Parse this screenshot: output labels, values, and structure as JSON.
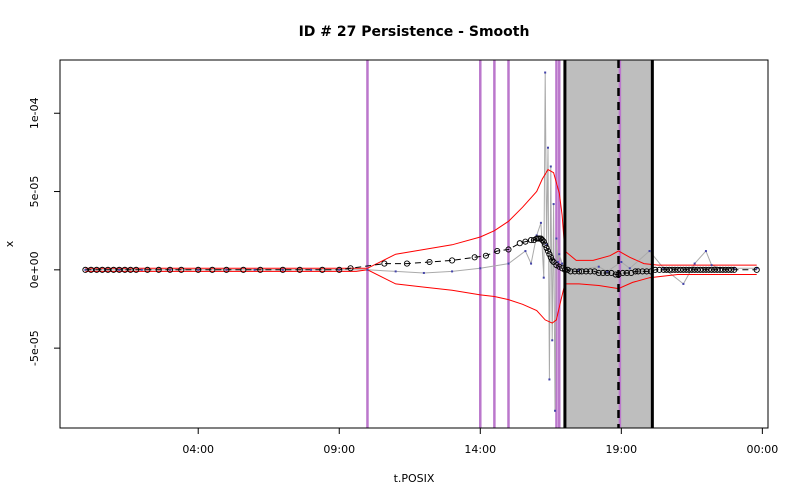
{
  "chart_data": {
    "type": "line",
    "title": "ID # 27 Persistence - Smooth",
    "xlabel": "t.POSIX",
    "ylabel": "x",
    "x_unit": "hours",
    "xlim": [
      -0.9,
      24.2
    ],
    "ylim": [
      -0.000101,
      0.000134
    ],
    "x_ticks": [
      {
        "value": 4,
        "label": "04:00"
      },
      {
        "value": 9,
        "label": "09:00"
      },
      {
        "value": 14,
        "label": "14:00"
      },
      {
        "value": 19,
        "label": "19:00"
      },
      {
        "value": 24,
        "label": "00:00"
      }
    ],
    "y_ticks": [
      {
        "value": -5e-05,
        "label": "-5e-05"
      },
      {
        "value": 0,
        "label": "0e+00"
      },
      {
        "value": 5e-05,
        "label": "5e-05"
      },
      {
        "value": 0.0001,
        "label": "1e-04"
      }
    ],
    "grid": false,
    "legend": "none",
    "colors": {
      "ci_band": "#ff0000",
      "observed": "#aaaaaa",
      "observed_points": "#4444aa",
      "smooth_line": "#000000",
      "change_lines": "#bb77cc",
      "gap_shade": "#bebebe"
    },
    "shaded_interval": {
      "from": 17.0,
      "to": 20.1
    },
    "gap_boundaries": [
      17.0,
      20.1
    ],
    "dashed_line": 18.9,
    "change_points": [
      10.0,
      14.0,
      14.5,
      15.0,
      16.7,
      16.8,
      18.95
    ],
    "series": [
      {
        "name": "observed",
        "points": [
          [
            0,
            0
          ],
          [
            0.3,
            0
          ],
          [
            0.7,
            0
          ],
          [
            1.2,
            0
          ],
          [
            2,
            0
          ],
          [
            3,
            0
          ],
          [
            4,
            0
          ],
          [
            5,
            0
          ],
          [
            6,
            0
          ],
          [
            7,
            0
          ],
          [
            8,
            0
          ],
          [
            9,
            0
          ],
          [
            10,
            0
          ],
          [
            11,
            -1e-06
          ],
          [
            12,
            -2e-06
          ],
          [
            13,
            -1e-06
          ],
          [
            14,
            1e-06
          ],
          [
            15,
            4e-06
          ],
          [
            15.6,
            1.2e-05
          ],
          [
            15.8,
            4e-06
          ],
          [
            16.0,
            2.2e-05
          ],
          [
            16.15,
            3e-05
          ],
          [
            16.25,
            -5e-06
          ],
          [
            16.3,
            0.000126
          ],
          [
            16.35,
            1.6e-05
          ],
          [
            16.4,
            7.8e-05
          ],
          [
            16.45,
            -7e-05
          ],
          [
            16.5,
            6.6e-05
          ],
          [
            16.55,
            -4.5e-05
          ],
          [
            16.6,
            4.2e-05
          ],
          [
            16.65,
            -9e-05
          ],
          [
            16.7,
            2e-05
          ],
          [
            16.75,
            5e-06
          ],
          [
            16.8,
            1e-05
          ],
          [
            16.9,
            4e-06
          ],
          [
            17.0,
            1e-06
          ],
          [
            17.5,
            0
          ],
          [
            18.2,
            2e-06
          ],
          [
            18.5,
            -1e-06
          ],
          [
            19,
            5e-06
          ],
          [
            19.3,
            1e-06
          ],
          [
            20.0,
            1.2e-05
          ],
          [
            20.5,
            1e-06
          ],
          [
            21.2,
            -9e-06
          ],
          [
            21.6,
            4e-06
          ],
          [
            22.0,
            1.2e-05
          ],
          [
            22.2,
            3e-06
          ],
          [
            22.5,
            1e-06
          ],
          [
            23,
            1e-06
          ],
          [
            23.8,
            1e-06
          ]
        ]
      },
      {
        "name": "smooth",
        "points": [
          [
            0,
            0
          ],
          [
            0.2,
            0
          ],
          [
            0.4,
            0
          ],
          [
            0.6,
            0
          ],
          [
            0.8,
            0
          ],
          [
            1,
            0
          ],
          [
            1.2,
            0
          ],
          [
            1.4,
            0
          ],
          [
            1.6,
            0
          ],
          [
            1.8,
            0
          ],
          [
            2.2,
            0
          ],
          [
            2.6,
            0
          ],
          [
            3,
            0
          ],
          [
            3.4,
            0
          ],
          [
            4,
            0
          ],
          [
            4.5,
            0
          ],
          [
            5,
            0
          ],
          [
            5.6,
            0
          ],
          [
            6.2,
            0
          ],
          [
            7,
            0
          ],
          [
            7.6,
            0
          ],
          [
            8.4,
            0
          ],
          [
            9,
            0
          ],
          [
            9.4,
            1e-06
          ],
          [
            10.6,
            4e-06
          ],
          [
            11.4,
            4e-06
          ],
          [
            12.2,
            5e-06
          ],
          [
            13,
            6e-06
          ],
          [
            13.8,
            8e-06
          ],
          [
            14.2,
            9e-06
          ],
          [
            14.6,
            1.2e-05
          ],
          [
            15.0,
            1.3e-05
          ],
          [
            15.4,
            1.7e-05
          ],
          [
            15.6,
            1.8e-05
          ],
          [
            15.8,
            1.9e-05
          ],
          [
            15.9,
            1.9e-05
          ],
          [
            16.0,
            2e-05
          ],
          [
            16.05,
            2e-05
          ],
          [
            16.1,
            2e-05
          ],
          [
            16.15,
            2e-05
          ],
          [
            16.2,
            1.9e-05
          ],
          [
            16.25,
            1.8e-05
          ],
          [
            16.3,
            1.6e-05
          ],
          [
            16.35,
            1.4e-05
          ],
          [
            16.4,
            1.2e-05
          ],
          [
            16.45,
            1e-05
          ],
          [
            16.5,
            8e-06
          ],
          [
            16.55,
            6e-06
          ],
          [
            16.6,
            5e-06
          ],
          [
            16.7,
            3e-06
          ],
          [
            16.8,
            2e-06
          ],
          [
            16.9,
            1e-06
          ],
          [
            17.0,
            0
          ],
          [
            17.1,
            0
          ],
          [
            17.2,
            -1e-06
          ],
          [
            17.35,
            -1e-06
          ],
          [
            17.5,
            -1e-06
          ],
          [
            17.6,
            -1e-06
          ],
          [
            17.75,
            -1e-06
          ],
          [
            17.9,
            -1e-06
          ],
          [
            18.05,
            -1e-06
          ],
          [
            18.2,
            -2e-06
          ],
          [
            18.35,
            -2e-06
          ],
          [
            18.5,
            -2e-06
          ],
          [
            18.65,
            -2e-06
          ],
          [
            18.8,
            -3e-06
          ],
          [
            18.9,
            -3e-06
          ],
          [
            19.05,
            -2e-06
          ],
          [
            19.2,
            -2e-06
          ],
          [
            19.35,
            -2e-06
          ],
          [
            19.5,
            -1e-06
          ],
          [
            19.6,
            -1e-06
          ],
          [
            19.75,
            -1e-06
          ],
          [
            19.9,
            -1e-06
          ],
          [
            20.05,
            -1e-06
          ],
          [
            20.2,
            0
          ],
          [
            20.35,
            0
          ],
          [
            20.5,
            0
          ],
          [
            20.6,
            0
          ],
          [
            20.7,
            0
          ],
          [
            20.8,
            0
          ],
          [
            20.9,
            0
          ],
          [
            21.0,
            0
          ],
          [
            21.1,
            0
          ],
          [
            21.2,
            0
          ],
          [
            21.3,
            0
          ],
          [
            21.4,
            0
          ],
          [
            21.5,
            0
          ],
          [
            21.6,
            0
          ],
          [
            21.7,
            0
          ],
          [
            21.8,
            0
          ],
          [
            21.9,
            0
          ],
          [
            22.0,
            0
          ],
          [
            22.1,
            0
          ],
          [
            22.2,
            0
          ],
          [
            22.3,
            0
          ],
          [
            22.4,
            0
          ],
          [
            22.5,
            0
          ],
          [
            22.6,
            0
          ],
          [
            22.7,
            0
          ],
          [
            22.8,
            0
          ],
          [
            22.9,
            0
          ],
          [
            23.0,
            0
          ],
          [
            23.8,
            0
          ]
        ]
      },
      {
        "name": "upper",
        "points": [
          [
            0,
            1e-06
          ],
          [
            2,
            1e-06
          ],
          [
            4,
            1e-06
          ],
          [
            6,
            1e-06
          ],
          [
            8,
            1e-06
          ],
          [
            9.6,
            1e-06
          ],
          [
            10,
            1e-06
          ],
          [
            11,
            1e-05
          ],
          [
            12,
            1.3e-05
          ],
          [
            13,
            1.6e-05
          ],
          [
            14,
            2.1e-05
          ],
          [
            14.5,
            2.5e-05
          ],
          [
            15,
            3.1e-05
          ],
          [
            15.5,
            4e-05
          ],
          [
            16,
            5e-05
          ],
          [
            16.2,
            5.8e-05
          ],
          [
            16.4,
            6.4e-05
          ],
          [
            16.6,
            6.2e-05
          ],
          [
            16.8,
            4.9e-05
          ],
          [
            16.9,
            3.5e-05
          ],
          [
            17.0,
            1.2e-05
          ],
          [
            17.4,
            6e-06
          ],
          [
            18.0,
            6e-06
          ],
          [
            18.6,
            9e-06
          ],
          [
            18.9,
            1.2e-05
          ],
          [
            19.3,
            8e-06
          ],
          [
            19.8,
            4e-06
          ],
          [
            20.3,
            3e-06
          ],
          [
            21,
            3e-06
          ],
          [
            22,
            3e-06
          ],
          [
            23,
            3e-06
          ],
          [
            23.8,
            3e-06
          ]
        ]
      },
      {
        "name": "lower",
        "points": [
          [
            0,
            -1e-06
          ],
          [
            2,
            -1e-06
          ],
          [
            4,
            -1e-06
          ],
          [
            6,
            -1e-06
          ],
          [
            8,
            -1e-06
          ],
          [
            9.6,
            -1e-06
          ],
          [
            10,
            0
          ],
          [
            11,
            -9e-06
          ],
          [
            12,
            -1.1e-05
          ],
          [
            13,
            -1.3e-05
          ],
          [
            14,
            -1.6e-05
          ],
          [
            14.5,
            -1.7e-05
          ],
          [
            15,
            -1.9e-05
          ],
          [
            15.5,
            -2.2e-05
          ],
          [
            16,
            -2.6e-05
          ],
          [
            16.3,
            -3.2e-05
          ],
          [
            16.55,
            -3.4e-05
          ],
          [
            16.7,
            -3.2e-05
          ],
          [
            16.85,
            -2e-05
          ],
          [
            17.0,
            -9e-06
          ],
          [
            17.5,
            -9e-06
          ],
          [
            18.2,
            -1e-05
          ],
          [
            18.9,
            -1.2e-05
          ],
          [
            19.4,
            -8e-06
          ],
          [
            20.0,
            -5e-06
          ],
          [
            21,
            -3e-06
          ],
          [
            22,
            -3e-06
          ],
          [
            23,
            -3e-06
          ],
          [
            23.8,
            -3e-06
          ]
        ]
      }
    ]
  }
}
